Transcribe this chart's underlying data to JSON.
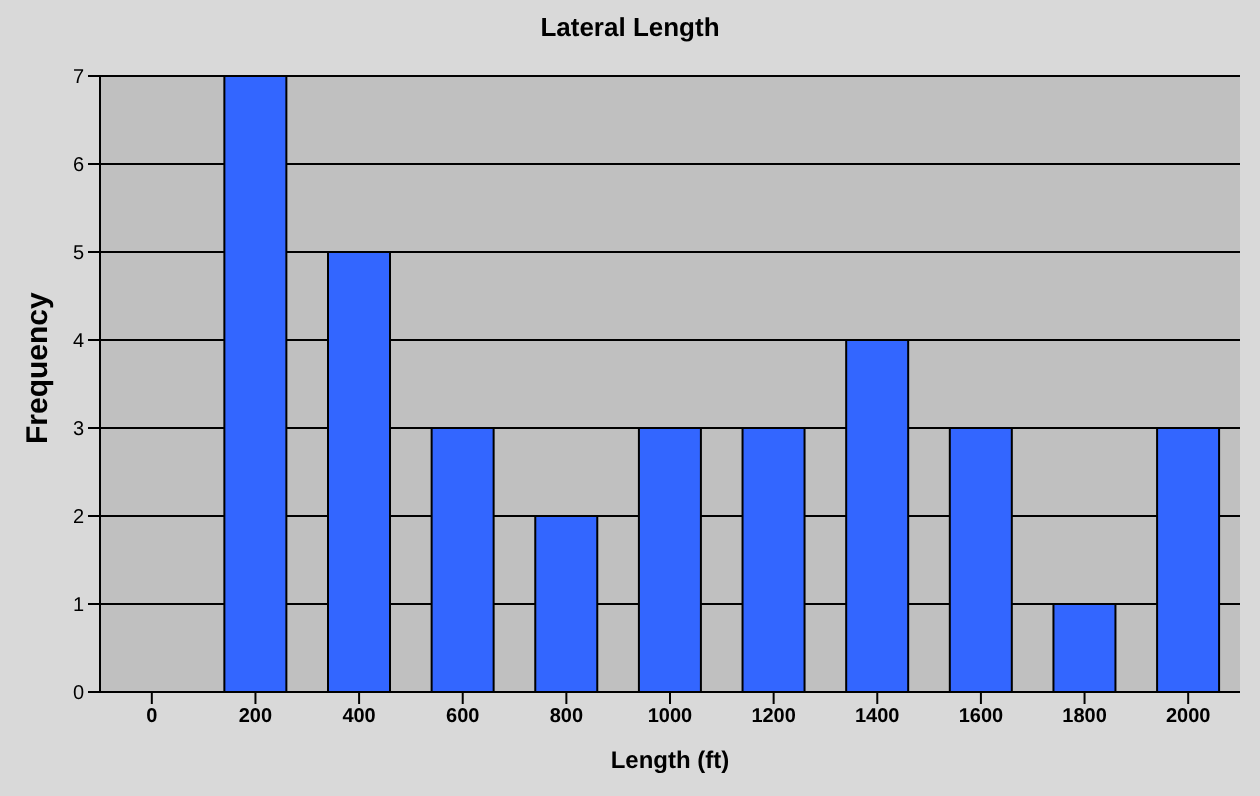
{
  "chart_data": {
    "type": "bar",
    "title": "Lateral Length",
    "xlabel": "Length (ft)",
    "ylabel": "Frequency",
    "categories": [
      "0",
      "200",
      "400",
      "600",
      "800",
      "1000",
      "1200",
      "1400",
      "1600",
      "1800",
      "2000"
    ],
    "values": [
      0,
      7,
      5,
      3,
      2,
      3,
      3,
      4,
      3,
      1,
      3
    ],
    "color": "#3366ff",
    "ylim": [
      0,
      7
    ],
    "yticks": [
      0,
      1,
      2,
      3,
      4,
      5,
      6,
      7
    ],
    "grid": "y",
    "legend": false
  }
}
